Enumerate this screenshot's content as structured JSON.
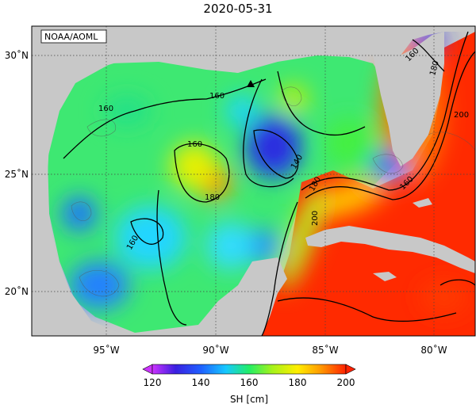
{
  "title": "2020-05-31",
  "credit": "NOAA/AOML",
  "axes": {
    "x_ticks": [
      "95˚W",
      "90˚W",
      "85˚W",
      "80˚W"
    ],
    "y_ticks": [
      "30˚N",
      "25˚N",
      "20˚N"
    ],
    "lon_range": [
      -98.0,
      -78.0
    ],
    "lat_range": [
      18.0,
      31.0
    ]
  },
  "contour_labels": [
    "160",
    "160",
    "160",
    "160",
    "160",
    "160",
    "180",
    "180",
    "180",
    "140",
    "200",
    "200"
  ],
  "colorbar": {
    "ticks": [
      "120",
      "140",
      "160",
      "180",
      "200"
    ],
    "label": "SH [cm]",
    "range": [
      120,
      200
    ]
  },
  "colors": {
    "land": "#c8c8c8",
    "c120": "#cc33ff",
    "c130": "#3a1fe0",
    "c140": "#1f5fff",
    "c150": "#16c8ff",
    "c160": "#22ee66",
    "c170": "#a6f21a",
    "c180": "#ffee00",
    "c190": "#ff9900",
    "c200": "#ff2200"
  },
  "chart_data": {
    "type": "heatmap",
    "title": "2020-05-31",
    "colorbar_label": "SH [cm]",
    "value_range": [
      120,
      200
    ],
    "grid": true,
    "x_range_lon": [
      -98,
      -78
    ],
    "y_range_lat": [
      18,
      31
    ],
    "marker": {
      "shape": "triangle",
      "lon": -88.4,
      "lat": 28.6
    }
  }
}
